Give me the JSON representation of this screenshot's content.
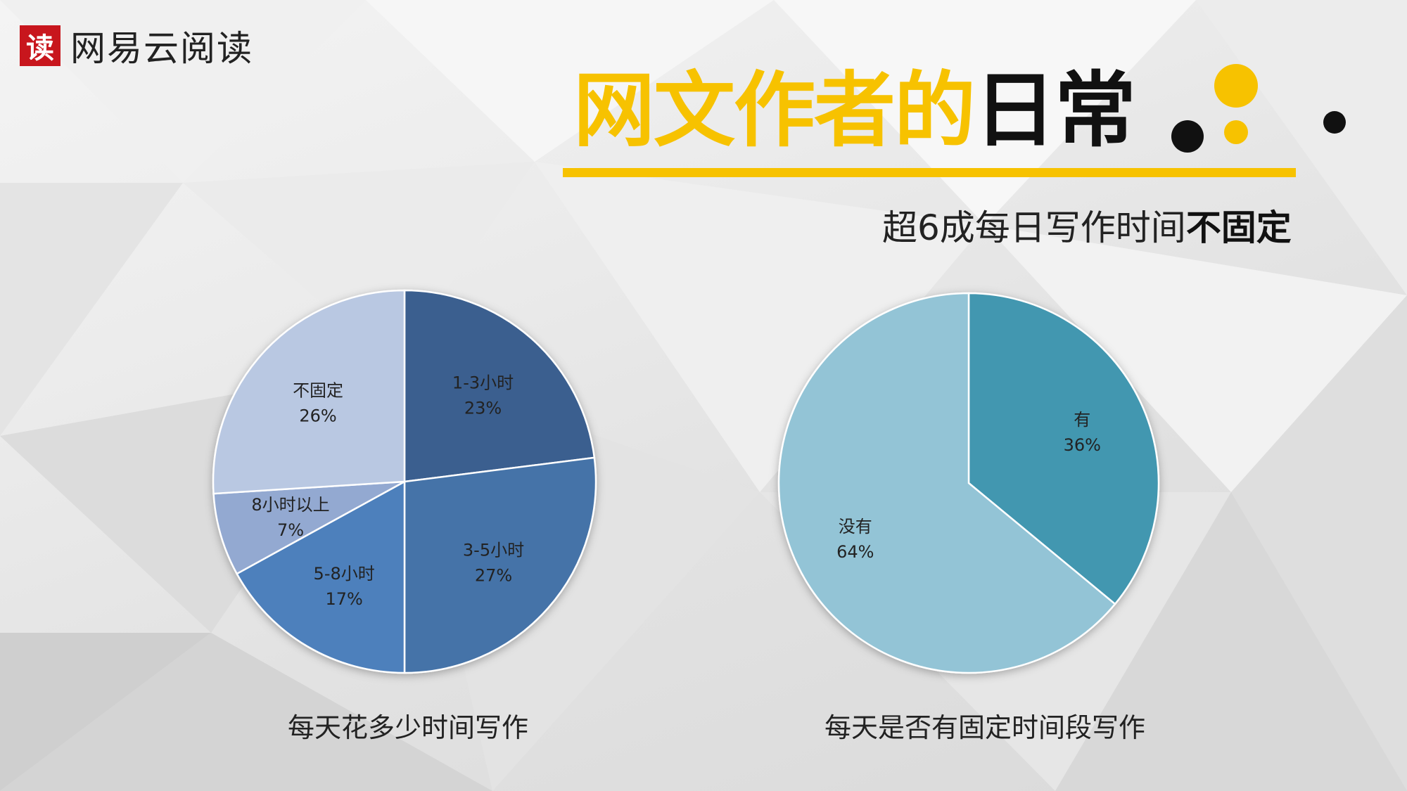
{
  "logo": {
    "mark": "读",
    "text": "网易云阅读"
  },
  "title": {
    "part_yellow": "网文作者的",
    "part_black": "日常"
  },
  "subtitle": {
    "normal": "超6成每日写作时间",
    "bold": "不固定"
  },
  "colors": {
    "accent": "#f7c200",
    "brand_red": "#c8161d",
    "pie1": [
      "#3a5f8f",
      "#4573a8",
      "#4e80bc",
      "#93a9d1",
      "#b9c8e2"
    ],
    "pie2": [
      "#4397b0",
      "#93c4d6"
    ]
  },
  "chart_data": [
    {
      "type": "pie",
      "title": "每天花多少时间写作",
      "labels": [
        "1-3小时",
        "3-5小时",
        "5-8小时",
        "8小时以上",
        "不固定"
      ],
      "values": [
        23,
        27,
        17,
        7,
        26
      ],
      "value_labels": [
        "23%",
        "27%",
        "17%",
        "7%",
        "26%"
      ],
      "unit": "%"
    },
    {
      "type": "pie",
      "title": "每天是否有固定时间段写作",
      "labels": [
        "有",
        "没有"
      ],
      "values": [
        36,
        64
      ],
      "value_labels": [
        "36%",
        "64%"
      ],
      "unit": "%"
    }
  ]
}
